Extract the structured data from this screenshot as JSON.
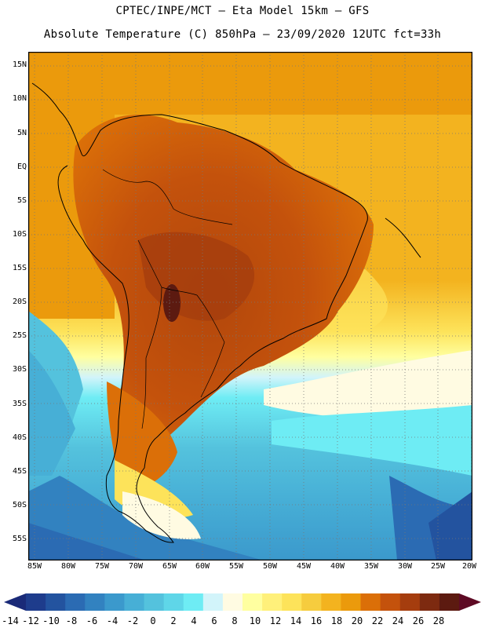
{
  "header": {
    "title_line1": "CPTEC/INPE/MCT —  Eta Model 15km — GFS",
    "title_line2": "Absolute Temperature (C) 850hPa — 23/09/2020 12UTC fct=33h"
  },
  "map": {
    "lat_labels": [
      "15N",
      "10N",
      "5N",
      "EQ",
      "5S",
      "10S",
      "15S",
      "20S",
      "25S",
      "30S",
      "35S",
      "40S",
      "45S",
      "50S",
      "55S"
    ],
    "lon_labels": [
      "85W",
      "80W",
      "75W",
      "70W",
      "65W",
      "60W",
      "55W",
      "50W",
      "45W",
      "40W",
      "35W",
      "30W",
      "25W",
      "20W"
    ]
  },
  "colorbar": {
    "labels": [
      "-14",
      "-12",
      "-10",
      "-8",
      "-6",
      "-4",
      "-2",
      "0",
      "2",
      "4",
      "6",
      "8",
      "10",
      "12",
      "14",
      "16",
      "18",
      "20",
      "22",
      "24",
      "26",
      "28"
    ],
    "colors": [
      "#1e3c8c",
      "#23539f",
      "#2b6bb3",
      "#3282c0",
      "#3b99cc",
      "#47afd6",
      "#54c2dd",
      "#5fd6e8",
      "#6eecf4",
      "#d2f4fa",
      "#fffbe2",
      "#ffffa0",
      "#fff07a",
      "#fde35a",
      "#f6cc3e",
      "#f3b31f",
      "#eb9a0c",
      "#db6f08",
      "#c4520c",
      "#a53d0e",
      "#7d2a10",
      "#5c1a10"
    ],
    "low_arrow_color": "#1a2a78",
    "high_arrow_color": "#5e0a24"
  }
}
